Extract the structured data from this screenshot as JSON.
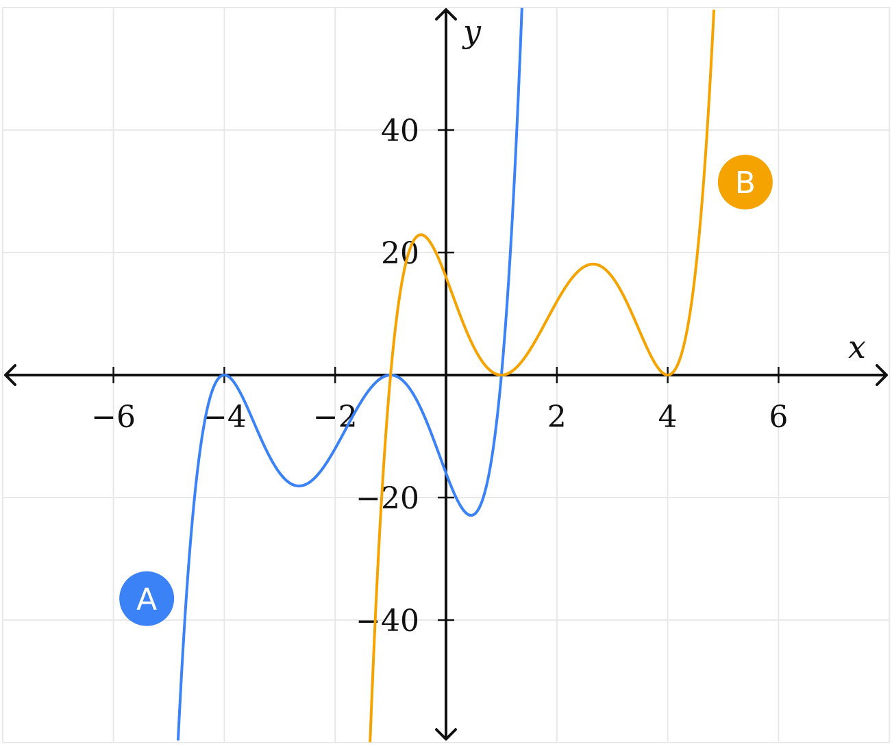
{
  "chart_data": {
    "type": "line",
    "xlabel": "x",
    "ylabel": "y",
    "xlim": [
      -8,
      8
    ],
    "ylim": [
      -60,
      60
    ],
    "grid": true,
    "x_ticks": [
      -6,
      -4,
      -2,
      2,
      4,
      6
    ],
    "x_tick_labels": [
      "−6",
      "−4",
      "−2",
      "2",
      "4",
      "6"
    ],
    "y_ticks": [
      -40,
      -20,
      20,
      40
    ],
    "y_tick_labels": [
      "−40",
      "−20",
      "20",
      "40"
    ],
    "series": [
      {
        "name": "A",
        "color": "#3b82f6",
        "expression": "(x+4)^2 (x+1)^2 (x-1)",
        "roots": [
          -4,
          -1,
          1
        ],
        "label_position": {
          "x": -5.4,
          "y": -36.5
        }
      },
      {
        "name": "B",
        "color": "#f5a300",
        "expression": "(x+1) (x-1)^2 (x-4)^2",
        "roots": [
          -1,
          1,
          4
        ],
        "label_position": {
          "x": 5.4,
          "y": 31.5
        }
      }
    ]
  }
}
